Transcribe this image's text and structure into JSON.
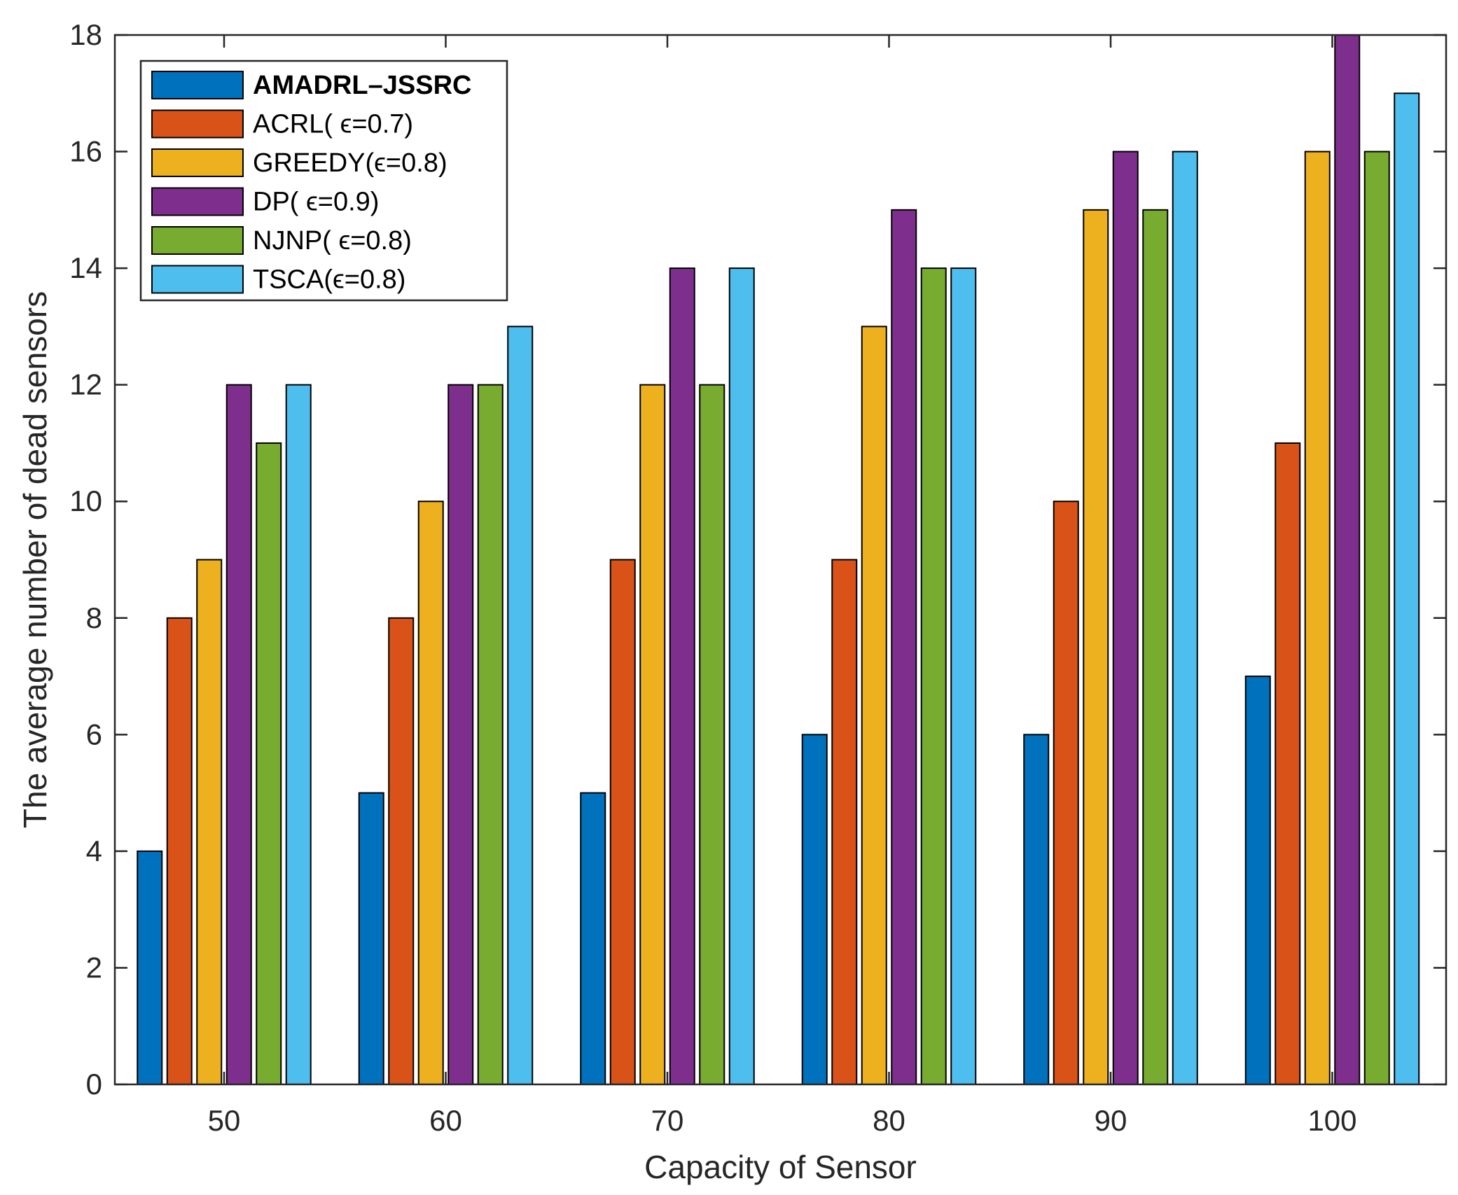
{
  "chart_data": {
    "type": "bar",
    "title": "",
    "xlabel": "Capacity of Sensor",
    "ylabel": "The average number of dead sensors",
    "categories": [
      "50",
      "60",
      "70",
      "80",
      "90",
      "100"
    ],
    "ylim": [
      0,
      18
    ],
    "yticks": [
      0,
      2,
      4,
      6,
      8,
      10,
      12,
      14,
      16,
      18
    ],
    "grid": false,
    "legend_position": "top-left",
    "series": [
      {
        "name": "AMADRL–JSSRC",
        "color": "#0072BD",
        "values": [
          4,
          5,
          5,
          6,
          6,
          7
        ]
      },
      {
        "name": "ACRL( ϵ=0.7)",
        "color": "#D95319",
        "values": [
          8,
          8,
          9,
          9,
          10,
          11
        ]
      },
      {
        "name": "GREEDY(ϵ=0.8)",
        "color": "#EDB120",
        "values": [
          9,
          10,
          12,
          13,
          15,
          16
        ]
      },
      {
        "name": "DP( ϵ=0.9)",
        "color": "#7E2F8E",
        "values": [
          12,
          12,
          14,
          15,
          16,
          18
        ]
      },
      {
        "name": "NJNP( ϵ=0.8)",
        "color": "#77AC30",
        "values": [
          11,
          12,
          12,
          14,
          15,
          16
        ]
      },
      {
        "name": "TSCA(ϵ=0.8)",
        "color": "#4DBEEE",
        "values": [
          12,
          13,
          14,
          14,
          16,
          17
        ]
      }
    ]
  }
}
